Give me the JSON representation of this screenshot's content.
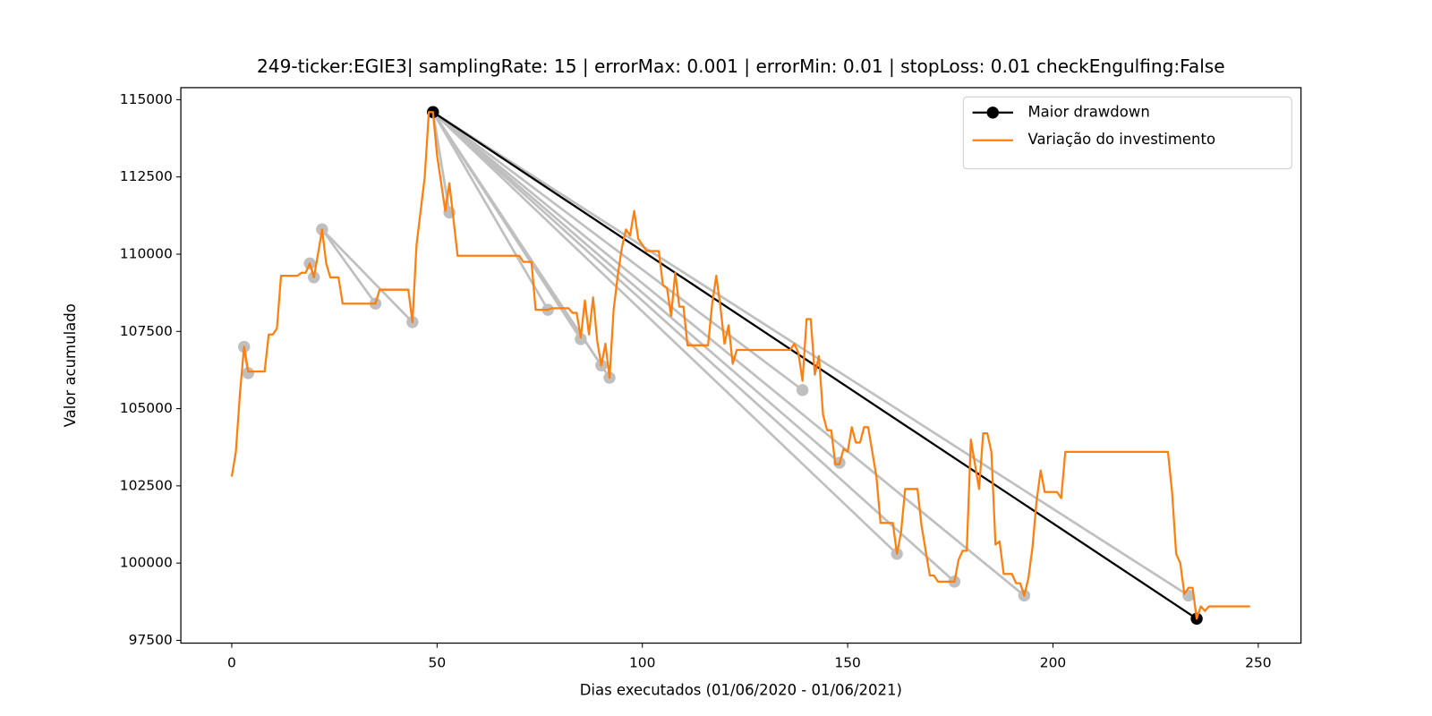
{
  "chart_data": {
    "type": "line",
    "title": "249-ticker:EGIE3| samplingRate: 15 | errorMax: 0.001 | errorMin: 0.01 | stopLoss: 0.01 checkEngulfing:False",
    "x_label": "Dias executados (01/06/2020 - 01/06/2021)",
    "y_label": "Valor acumulado",
    "xlim": [
      -12.4,
      260.4
    ],
    "ylim": [
      97410,
      115390
    ],
    "xticks": [
      0,
      50,
      100,
      150,
      200,
      250
    ],
    "yticks": [
      97500,
      100000,
      102500,
      105000,
      107500,
      110000,
      112500,
      115000
    ],
    "legend": "upper right",
    "segment_color": "#bfbfbf",
    "segments": [
      {
        "x": [
          3,
          4
        ],
        "values": [
          107000,
          106150
        ]
      },
      {
        "x": [
          19,
          20
        ],
        "values": [
          109700,
          109250
        ]
      },
      {
        "x": [
          22,
          35
        ],
        "values": [
          110800,
          108400
        ]
      },
      {
        "x": [
          22,
          44
        ],
        "values": [
          110800,
          107800
        ]
      },
      {
        "x": [
          49,
          53
        ],
        "values": [
          114600,
          111350
        ]
      },
      {
        "x": [
          49,
          77
        ],
        "values": [
          114600,
          108200
        ]
      },
      {
        "x": [
          49,
          85
        ],
        "values": [
          114600,
          107250
        ]
      },
      {
        "x": [
          49,
          90
        ],
        "values": [
          114600,
          106400
        ]
      },
      {
        "x": [
          49,
          92
        ],
        "values": [
          114600,
          106000
        ]
      },
      {
        "x": [
          49,
          139
        ],
        "values": [
          114600,
          105600
        ]
      },
      {
        "x": [
          49,
          148
        ],
        "values": [
          114600,
          103250
        ]
      },
      {
        "x": [
          49,
          162
        ],
        "values": [
          114600,
          100300
        ]
      },
      {
        "x": [
          49,
          176
        ],
        "values": [
          114600,
          99400
        ]
      },
      {
        "x": [
          49,
          193
        ],
        "values": [
          114600,
          98950
        ]
      },
      {
        "x": [
          49,
          233
        ],
        "values": [
          114600,
          98950
        ]
      }
    ],
    "series": [
      {
        "name": "Maior drawdown",
        "color": "#000000",
        "markers": true,
        "x": [
          49,
          235
        ],
        "values": [
          114600,
          98200
        ]
      },
      {
        "name": "Variação do investimento",
        "color": "#ff7f0e",
        "markers": false,
        "x": [
          0,
          1,
          2,
          3,
          4,
          8,
          9,
          10,
          11,
          12,
          16,
          17,
          18,
          19,
          20,
          21,
          22,
          23,
          24,
          26,
          27,
          35,
          36,
          43,
          44,
          45,
          47,
          48,
          49,
          50,
          52,
          53,
          55,
          70,
          71,
          73,
          74,
          77,
          78,
          82,
          83,
          84,
          85,
          86,
          87,
          88,
          89,
          90,
          91,
          92,
          93,
          94,
          95,
          96,
          97,
          98,
          99,
          101,
          104,
          105,
          106,
          107,
          108,
          109,
          110,
          111,
          116,
          117,
          118,
          119,
          120,
          121,
          122,
          123,
          136,
          137,
          138,
          139,
          140,
          141,
          142,
          143,
          144,
          145,
          146,
          147,
          148,
          149,
          150,
          151,
          152,
          153,
          154,
          155,
          157,
          158,
          161,
          162,
          163,
          164,
          167,
          168,
          170,
          171,
          172,
          176,
          177,
          178,
          179,
          180,
          182,
          183,
          184,
          185,
          186,
          187,
          188,
          190,
          191,
          192,
          193,
          194,
          195,
          196,
          197,
          198,
          201,
          202,
          203,
          228,
          229,
          230,
          231,
          232,
          233,
          234,
          235,
          236,
          237,
          238,
          248
        ],
        "values": [
          102800,
          103600,
          105500,
          107000,
          106200,
          106200,
          107400,
          107400,
          107600,
          109300,
          109300,
          109400,
          109400,
          109700,
          109250,
          110000,
          110800,
          109700,
          109250,
          109250,
          108400,
          108400,
          108850,
          108850,
          107800,
          110300,
          112500,
          114600,
          114600,
          113200,
          111400,
          112300,
          109950,
          109950,
          109750,
          109750,
          108200,
          108200,
          108250,
          108250,
          108100,
          108100,
          107300,
          108500,
          107400,
          108600,
          107200,
          106400,
          107100,
          106000,
          108200,
          109300,
          110200,
          110800,
          110600,
          111400,
          110500,
          110100,
          110100,
          109000,
          108900,
          108000,
          109400,
          108300,
          108300,
          107050,
          107050,
          108400,
          109300,
          108300,
          107100,
          107700,
          106450,
          106900,
          106900,
          107100,
          106800,
          105900,
          107900,
          107900,
          106100,
          106700,
          104800,
          104300,
          104300,
          103200,
          103200,
          103700,
          103600,
          104400,
          103900,
          103900,
          104400,
          104400,
          102800,
          101300,
          101300,
          100300,
          101000,
          102400,
          102400,
          101200,
          99600,
          99600,
          99400,
          99400,
          100100,
          100400,
          100400,
          104000,
          102400,
          104200,
          104200,
          103600,
          100600,
          100700,
          99650,
          99650,
          99350,
          99350,
          98950,
          99500,
          100500,
          102000,
          103000,
          102300,
          102300,
          102100,
          103600,
          103600,
          102300,
          100300,
          100000,
          99000,
          99200,
          99200,
          98200,
          98600,
          98450,
          98600,
          98600
        ]
      }
    ]
  }
}
